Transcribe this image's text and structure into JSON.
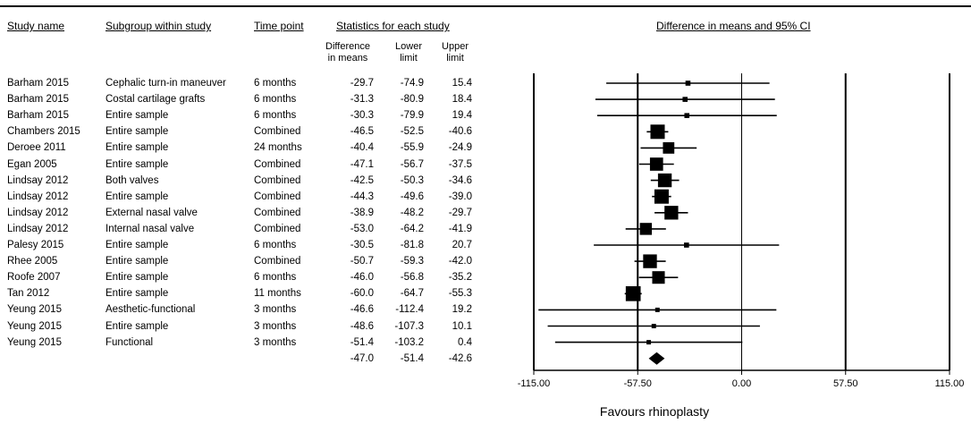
{
  "headers": {
    "study": "Study name",
    "subgroup": "Subgroup within study",
    "time": "Time point",
    "stats": "Statistics for each study",
    "plot": "Difference in means and 95% CI",
    "diff": "Difference\nin means",
    "lower": "Lower\nlimit",
    "upper": "Upper\nlimit"
  },
  "chart_data": {
    "type": "forest",
    "title": "",
    "xlabel": "Favours rhinoplasty",
    "xlim": [
      -115,
      115
    ],
    "ticks": [
      "-115.00",
      "-57.50",
      "0.00",
      "57.50",
      "115.00"
    ],
    "tick_values": [
      -115,
      -57.5,
      0,
      57.5,
      115
    ],
    "rows": [
      {
        "study": "Barham 2015",
        "subgroup": "Cephalic turn-in maneuver",
        "time": "6 months",
        "diff": "-29.7",
        "lower": "-74.9",
        "upper": "15.4",
        "d": -29.7,
        "lo": -74.9,
        "hi": 15.4,
        "weight": 0.2
      },
      {
        "study": "Barham 2015",
        "subgroup": "Costal cartilage grafts",
        "time": "6 months",
        "diff": "-31.3",
        "lower": "-80.9",
        "upper": "18.4",
        "d": -31.3,
        "lo": -80.9,
        "hi": 18.4,
        "weight": 0.2
      },
      {
        "study": "Barham 2015",
        "subgroup": "Entire sample",
        "time": "6 months",
        "diff": "-30.3",
        "lower": "-79.9",
        "upper": "19.4",
        "d": -30.3,
        "lo": -79.9,
        "hi": 19.4,
        "weight": 0.2
      },
      {
        "study": "Chambers 2015",
        "subgroup": "Entire sample",
        "time": "Combined",
        "diff": "-46.5",
        "lower": "-52.5",
        "upper": "-40.6",
        "d": -46.5,
        "lo": -52.5,
        "hi": -40.6,
        "weight": 1.0
      },
      {
        "study": "Deroee 2011",
        "subgroup": "Entire sample",
        "time": "24 months",
        "diff": "-40.4",
        "lower": "-55.9",
        "upper": "-24.9",
        "d": -40.4,
        "lo": -55.9,
        "hi": -24.9,
        "weight": 0.75
      },
      {
        "study": "Egan 2005",
        "subgroup": "Entire sample",
        "time": "Combined",
        "diff": "-47.1",
        "lower": "-56.7",
        "upper": "-37.5",
        "d": -47.1,
        "lo": -56.7,
        "hi": -37.5,
        "weight": 0.9
      },
      {
        "study": "Lindsay 2012",
        "subgroup": "Both valves",
        "time": "Combined",
        "diff": "-42.5",
        "lower": "-50.3",
        "upper": "-34.6",
        "d": -42.5,
        "lo": -50.3,
        "hi": -34.6,
        "weight": 0.95
      },
      {
        "study": "Lindsay 2012",
        "subgroup": "Entire sample",
        "time": "Combined",
        "diff": "-44.3",
        "lower": "-49.6",
        "upper": "-39.0",
        "d": -44.3,
        "lo": -49.6,
        "hi": -39.0,
        "weight": 1.0
      },
      {
        "study": "Lindsay 2012",
        "subgroup": "External nasal valve",
        "time": "Combined",
        "diff": "-38.9",
        "lower": "-48.2",
        "upper": "-29.7",
        "d": -38.9,
        "lo": -48.2,
        "hi": -29.7,
        "weight": 0.95
      },
      {
        "study": "Lindsay 2012",
        "subgroup": "Internal nasal valve",
        "time": "Combined",
        "diff": "-53.0",
        "lower": "-64.2",
        "upper": "-41.9",
        "d": -53.0,
        "lo": -64.2,
        "hi": -41.9,
        "weight": 0.8
      },
      {
        "study": "Palesy 2015",
        "subgroup": "Entire sample",
        "time": "6 months",
        "diff": "-30.5",
        "lower": "-81.8",
        "upper": "20.7",
        "d": -30.5,
        "lo": -81.8,
        "hi": 20.7,
        "weight": 0.2
      },
      {
        "study": "Rhee 2005",
        "subgroup": "Entire sample",
        "time": "Combined",
        "diff": "-50.7",
        "lower": "-59.3",
        "upper": "-42.0",
        "d": -50.7,
        "lo": -59.3,
        "hi": -42.0,
        "weight": 0.95
      },
      {
        "study": "Roofe 2007",
        "subgroup": "Entire sample",
        "time": "6 months",
        "diff": "-46.0",
        "lower": "-56.8",
        "upper": "-35.2",
        "d": -46.0,
        "lo": -56.8,
        "hi": -35.2,
        "weight": 0.85
      },
      {
        "study": "Tan 2012",
        "subgroup": "Entire sample",
        "time": "11 months",
        "diff": "-60.0",
        "lower": "-64.7",
        "upper": "-55.3",
        "d": -60.0,
        "lo": -64.7,
        "hi": -55.3,
        "weight": 1.05
      },
      {
        "study": "Yeung  2015",
        "subgroup": "Aesthetic-functional",
        "time": "3 months",
        "diff": "-46.6",
        "lower": "-112.4",
        "upper": "19.2",
        "d": -46.6,
        "lo": -112.4,
        "hi": 19.2,
        "weight": 0.15
      },
      {
        "study": "Yeung  2015",
        "subgroup": "Entire sample",
        "time": "3 months",
        "diff": "-48.6",
        "lower": "-107.3",
        "upper": "10.1",
        "d": -48.6,
        "lo": -107.3,
        "hi": 10.1,
        "weight": 0.15
      },
      {
        "study": "Yeung  2015",
        "subgroup": "Functional",
        "time": "3 months",
        "diff": "-51.4",
        "lower": "-103.2",
        "upper": "0.4",
        "d": -51.4,
        "lo": -103.2,
        "hi": 0.4,
        "weight": 0.15
      }
    ],
    "summary": {
      "diff": "-47.0",
      "lower": "-51.4",
      "upper": "-42.6",
      "d": -47.0,
      "lo": -51.4,
      "hi": -42.6
    }
  }
}
